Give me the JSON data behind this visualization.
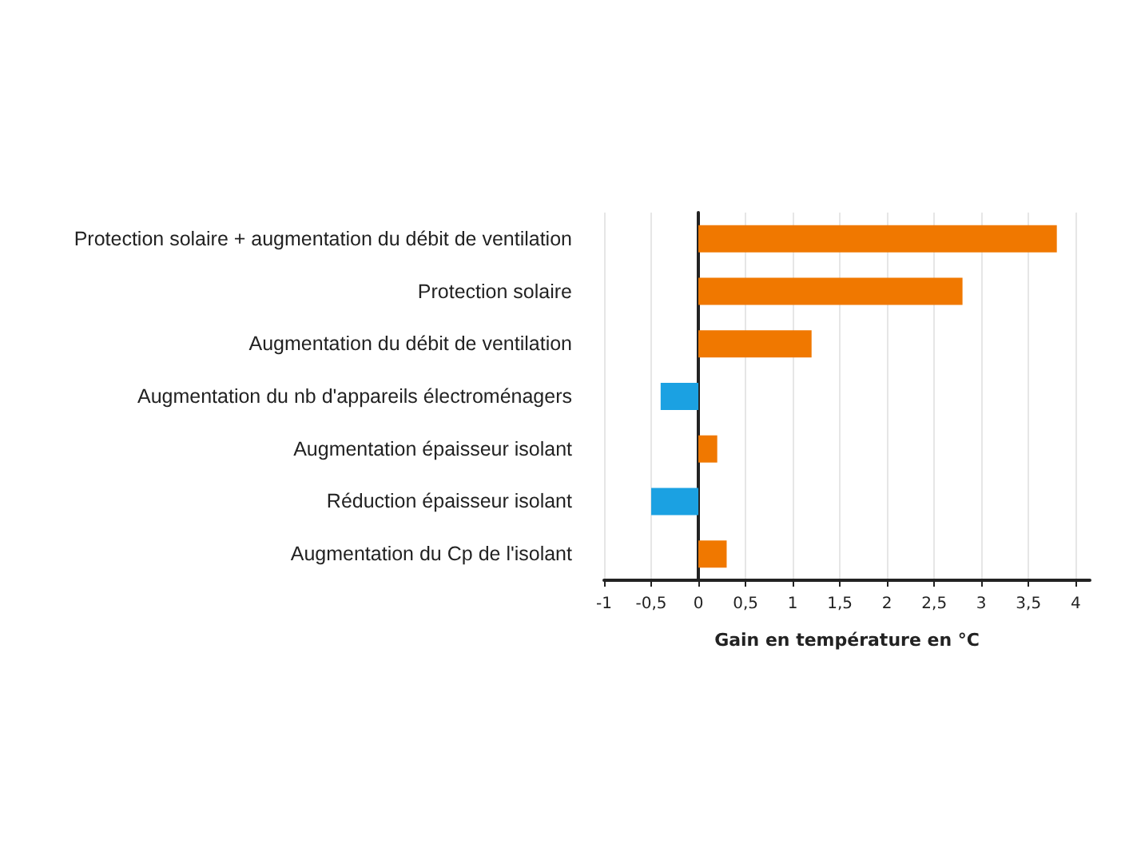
{
  "chart_data": {
    "type": "bar",
    "orientation": "horizontal",
    "xlabel": "Gain en température en °C",
    "categories": [
      "Protection solaire + augmentation du débit de ventilation",
      "Protection solaire",
      "Augmentation du débit de ventilation",
      "Augmentation du nb d'appareils électroménagers",
      "Augmentation épaisseur isolant",
      "Réduction épaisseur isolant",
      "Augmentation du Cp de l'isolant"
    ],
    "values": [
      3.8,
      2.8,
      1.2,
      -0.4,
      0.2,
      -0.5,
      0.3
    ],
    "colors": [
      "#f07800",
      "#f07800",
      "#f07800",
      "#1ba1e2",
      "#f07800",
      "#1ba1e2",
      "#f07800"
    ],
    "xlim": [
      -1,
      4.15
    ],
    "xticks": [
      -1,
      {
        "value": -0.5,
        "label": "-0,5"
      },
      0,
      {
        "value": 0.5,
        "label": "0,5"
      },
      1,
      {
        "value": 1.5,
        "label": "1,5"
      },
      2,
      {
        "value": 2.5,
        "label": "2,5"
      },
      3,
      {
        "value": 3.5,
        "label": "3,5"
      },
      4
    ],
    "grid": "x"
  }
}
